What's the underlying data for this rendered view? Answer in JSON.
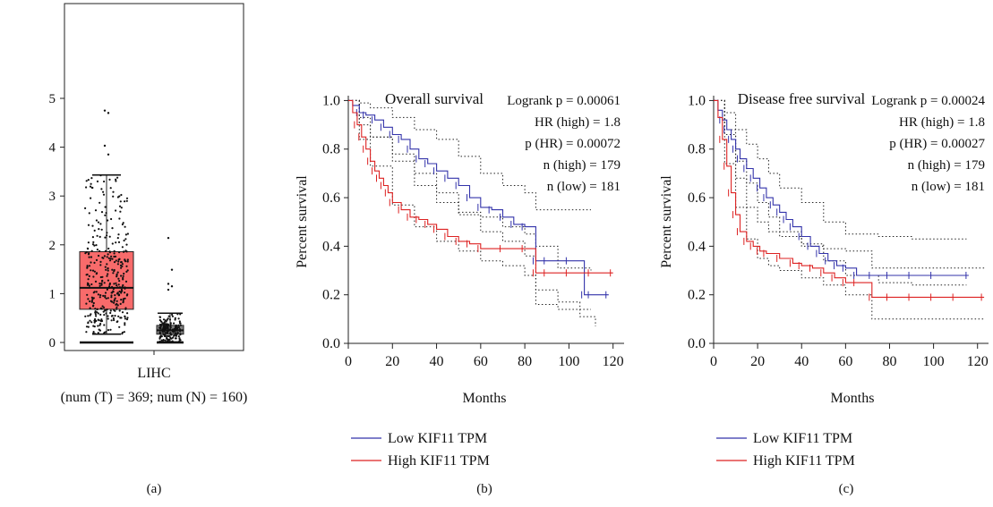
{
  "chart_data": [
    {
      "type": "box",
      "panel_label": "(a)",
      "ylim": [
        0,
        5
      ],
      "yticks": [
        0,
        1,
        2,
        3,
        4,
        5
      ],
      "category": "LIHC",
      "xcaption": "(num (T) = 369; num (N) = 160)",
      "series": [
        {
          "name": "T",
          "color": "#f86b6b",
          "n": 369,
          "q1": 0.68,
          "median": 1.12,
          "q3": 1.86,
          "whisker_low": 0.17,
          "whisker_high": 3.43,
          "min_line": 0.0,
          "outliers": [
            4.75,
            4.7,
            4.03,
            3.85
          ]
        },
        {
          "name": "N",
          "color": "#808080",
          "n": 160,
          "q1": 0.17,
          "median": 0.25,
          "q3": 0.35,
          "whisker_low": 0.01,
          "whisker_high": 0.6,
          "min_line": 0.0,
          "outliers": [
            2.14,
            1.49,
            1.2,
            1.15,
            1.08
          ]
        }
      ]
    },
    {
      "type": "line",
      "panel_label": "(b)",
      "title": "Overall survival",
      "xlabel": "Months",
      "ylabel": "Percent survival",
      "xlim": [
        0,
        125
      ],
      "ylim": [
        0,
        1.02
      ],
      "xticks": [
        0,
        20,
        40,
        60,
        80,
        100,
        120
      ],
      "yticks": [
        "0.0",
        "0.2",
        "0.4",
        "0.6",
        "0.8",
        "1.0"
      ],
      "annotation": {
        "logrank": "Logrank p = 0.00061",
        "hr": "HR (high) = 1.8",
        "p_hr": "p (HR) = 0.00072",
        "n_high": "n (high) = 179",
        "n_low": "n (low) = 181"
      },
      "series": [
        {
          "name": "Low KIF11 TPM",
          "color": "#3333aa",
          "dash": "",
          "x": [
            0,
            2,
            5,
            8,
            12,
            16,
            20,
            24,
            28,
            32,
            36,
            40,
            45,
            50,
            55,
            60,
            65,
            70,
            75,
            80,
            85,
            90,
            100,
            107,
            110,
            118
          ],
          "y": [
            1.0,
            0.98,
            0.95,
            0.94,
            0.92,
            0.89,
            0.86,
            0.84,
            0.8,
            0.76,
            0.74,
            0.71,
            0.68,
            0.65,
            0.6,
            0.56,
            0.55,
            0.52,
            0.49,
            0.48,
            0.34,
            0.34,
            0.34,
            0.2,
            0.2,
            0.2
          ]
        },
        {
          "name": "High KIF11 TPM",
          "color": "#dd2222",
          "dash": "",
          "x": [
            0,
            2,
            4,
            6,
            8,
            10,
            12,
            14,
            16,
            18,
            20,
            24,
            28,
            32,
            36,
            40,
            45,
            50,
            55,
            60,
            70,
            80,
            85,
            90,
            100,
            110,
            120
          ],
          "y": [
            1.0,
            0.95,
            0.9,
            0.85,
            0.8,
            0.75,
            0.71,
            0.68,
            0.65,
            0.62,
            0.58,
            0.55,
            0.52,
            0.51,
            0.49,
            0.47,
            0.44,
            0.42,
            0.41,
            0.39,
            0.39,
            0.39,
            0.29,
            0.29,
            0.29,
            0.29,
            0.29
          ]
        },
        {
          "name": "",
          "color": "#222222",
          "dash": "1.5,2.5",
          "x": [
            0,
            5,
            10,
            20,
            30,
            40,
            50,
            60,
            70,
            80,
            85,
            95,
            110
          ],
          "y": [
            1.0,
            0.99,
            0.97,
            0.93,
            0.88,
            0.84,
            0.77,
            0.7,
            0.65,
            0.62,
            0.55,
            0.55,
            0.55
          ]
        },
        {
          "name": "",
          "color": "#222222",
          "dash": "1.5,2.5",
          "x": [
            0,
            5,
            10,
            20,
            30,
            40,
            50,
            60,
            70,
            80,
            85,
            95,
            110
          ],
          "y": [
            1.0,
            0.9,
            0.85,
            0.78,
            0.7,
            0.62,
            0.53,
            0.46,
            0.42,
            0.36,
            0.16,
            0.14,
            0.14
          ]
        },
        {
          "name": "",
          "color": "#222222",
          "dash": "1.5,2.5",
          "x": [
            0,
            5,
            10,
            20,
            30,
            40,
            50,
            60,
            70,
            80,
            85,
            95,
            100,
            110
          ],
          "y": [
            1.0,
            0.93,
            0.85,
            0.75,
            0.65,
            0.58,
            0.54,
            0.52,
            0.48,
            0.45,
            0.4,
            0.31,
            0.31,
            0.3
          ]
        },
        {
          "name": "",
          "color": "#222222",
          "dash": "1.5,2.5",
          "x": [
            0,
            5,
            10,
            20,
            30,
            40,
            50,
            60,
            70,
            80,
            85,
            95,
            105,
            112
          ],
          "y": [
            1.0,
            0.84,
            0.73,
            0.57,
            0.48,
            0.42,
            0.38,
            0.34,
            0.32,
            0.28,
            0.22,
            0.17,
            0.11,
            0.07
          ]
        }
      ]
    },
    {
      "type": "line",
      "panel_label": "(c)",
      "title": "Disease free survival",
      "xlabel": "Months",
      "ylabel": "Percent survival",
      "xlim": [
        0,
        125
      ],
      "ylim": [
        0,
        1.02
      ],
      "xticks": [
        0,
        20,
        40,
        60,
        80,
        100,
        120
      ],
      "yticks": [
        "0.0",
        "0.2",
        "0.4",
        "0.6",
        "0.8",
        "1.0"
      ],
      "annotation": {
        "logrank": "Logrank p = 0.00024",
        "hr": "HR (high) = 1.8",
        "p_hr": "p (HR) = 0.00027",
        "n_high": "n (high) = 179",
        "n_low": "n (low) = 181"
      },
      "series": [
        {
          "name": "Low KIF11 TPM",
          "color": "#3333aa",
          "dash": "",
          "x": [
            0,
            2,
            4,
            6,
            8,
            10,
            12,
            15,
            18,
            21,
            24,
            27,
            30,
            33,
            36,
            40,
            44,
            48,
            52,
            56,
            60,
            65,
            72,
            80,
            90,
            100,
            116
          ],
          "y": [
            1.0,
            0.96,
            0.92,
            0.88,
            0.84,
            0.8,
            0.76,
            0.72,
            0.68,
            0.64,
            0.6,
            0.57,
            0.54,
            0.51,
            0.48,
            0.44,
            0.4,
            0.37,
            0.34,
            0.32,
            0.31,
            0.28,
            0.28,
            0.28,
            0.28,
            0.28,
            0.28
          ]
        },
        {
          "name": "High KIF11 TPM",
          "color": "#dd2222",
          "dash": "",
          "x": [
            0,
            2,
            4,
            6,
            8,
            10,
            12,
            15,
            18,
            21,
            24,
            30,
            36,
            40,
            45,
            50,
            55,
            60,
            65,
            72,
            80,
            90,
            100,
            110,
            123
          ],
          "y": [
            1.0,
            0.93,
            0.84,
            0.73,
            0.62,
            0.53,
            0.46,
            0.42,
            0.4,
            0.38,
            0.37,
            0.35,
            0.33,
            0.32,
            0.31,
            0.29,
            0.27,
            0.25,
            0.25,
            0.19,
            0.19,
            0.19,
            0.19,
            0.19,
            0.19
          ]
        },
        {
          "name": "",
          "color": "#222222",
          "dash": "1.5,2.5",
          "x": [
            0,
            5,
            10,
            15,
            20,
            25,
            30,
            40,
            50,
            60,
            75,
            90,
            115
          ],
          "y": [
            1.0,
            0.95,
            0.88,
            0.82,
            0.76,
            0.7,
            0.64,
            0.58,
            0.5,
            0.45,
            0.44,
            0.43,
            0.43
          ]
        },
        {
          "name": "",
          "color": "#222222",
          "dash": "1.5,2.5",
          "x": [
            0,
            5,
            10,
            15,
            20,
            25,
            30,
            40,
            50,
            60,
            75,
            90,
            115
          ],
          "y": [
            1.0,
            0.86,
            0.75,
            0.66,
            0.58,
            0.52,
            0.46,
            0.4,
            0.34,
            0.28,
            0.25,
            0.24,
            0.24
          ]
        },
        {
          "name": "",
          "color": "#222222",
          "dash": "1.5,2.5",
          "x": [
            0,
            5,
            10,
            15,
            20,
            25,
            30,
            40,
            50,
            60,
            72,
            90,
            123
          ],
          "y": [
            1.0,
            0.88,
            0.68,
            0.56,
            0.5,
            0.46,
            0.44,
            0.41,
            0.39,
            0.38,
            0.31,
            0.31,
            0.31
          ]
        },
        {
          "name": "",
          "color": "#222222",
          "dash": "1.5,2.5",
          "x": [
            0,
            5,
            10,
            15,
            20,
            25,
            30,
            40,
            50,
            60,
            72,
            90,
            123
          ],
          "y": [
            1.0,
            0.74,
            0.56,
            0.43,
            0.35,
            0.32,
            0.3,
            0.27,
            0.24,
            0.2,
            0.1,
            0.1,
            0.1
          ]
        }
      ]
    }
  ]
}
